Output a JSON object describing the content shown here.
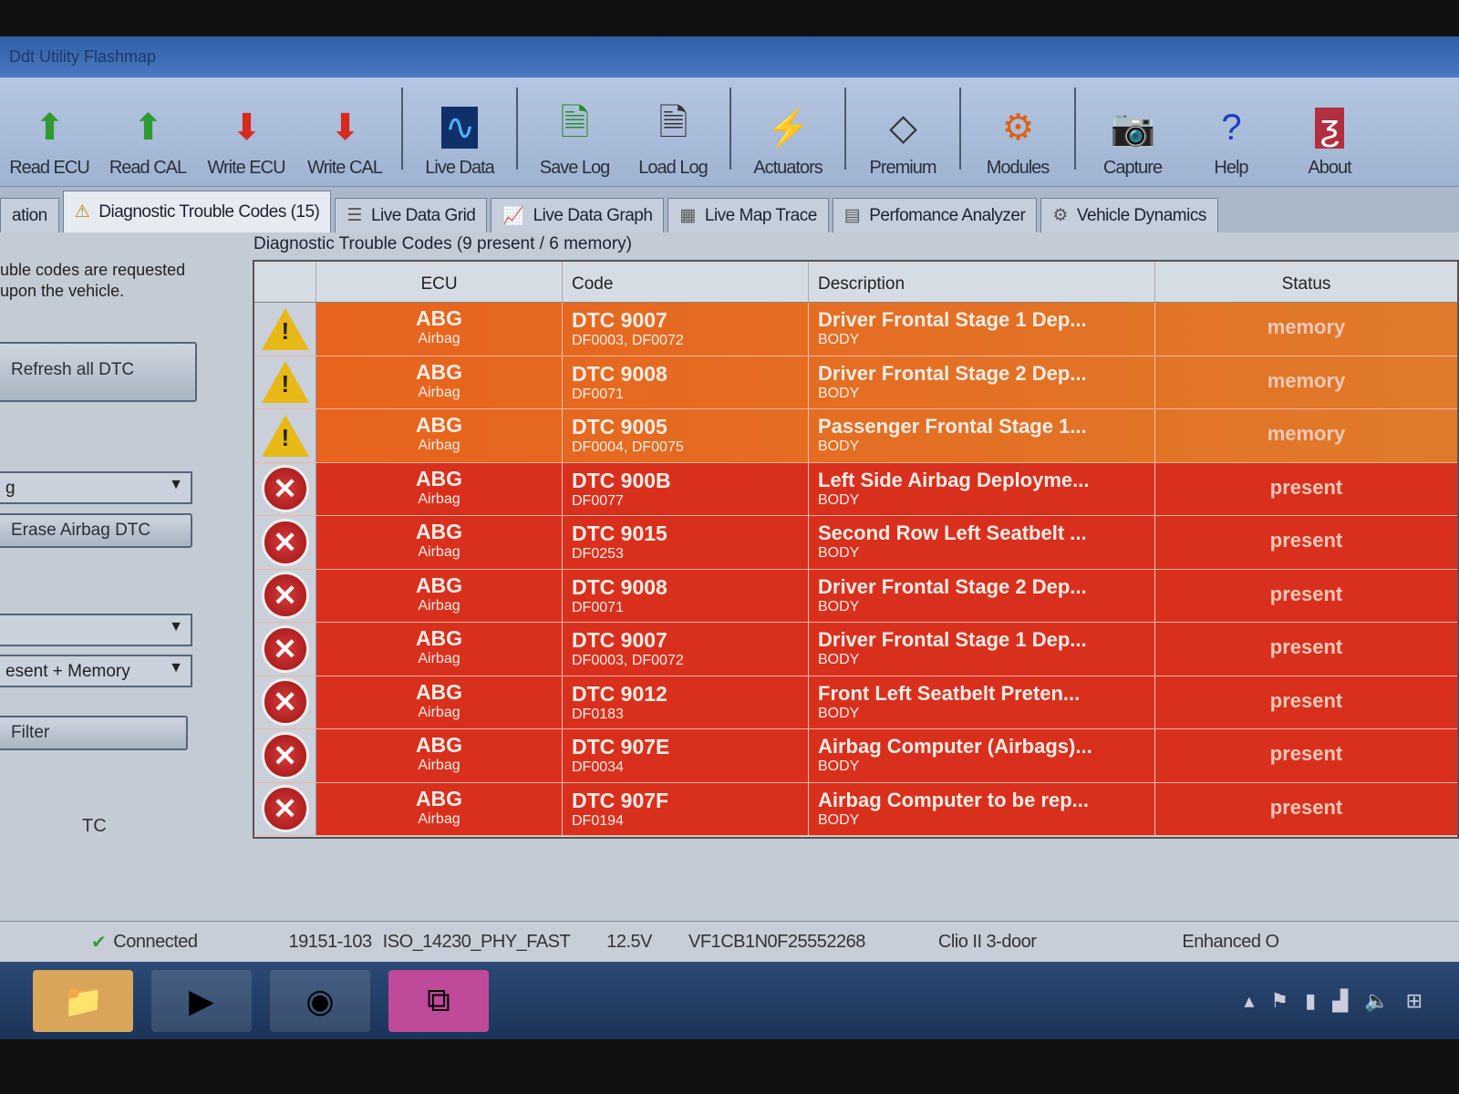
{
  "window": {
    "title": "Ddt Utility Flashmap"
  },
  "toolbar": [
    {
      "label": "Read ECU",
      "icon": "chip-green-arrow-icon"
    },
    {
      "label": "Read CAL",
      "icon": "chip-green-arrow-icon"
    },
    {
      "label": "Write ECU",
      "icon": "chip-red-arrow-icon"
    },
    {
      "label": "Write CAL",
      "icon": "chip-red-arrow-icon"
    },
    {
      "label": "Live Data",
      "icon": "waveform-icon"
    },
    {
      "label": "Save Log",
      "icon": "save-log-icon"
    },
    {
      "label": "Load Log",
      "icon": "load-log-icon"
    },
    {
      "label": "Actuators",
      "icon": "lightning-icon"
    },
    {
      "label": "Premium",
      "icon": "renault-logo-icon"
    },
    {
      "label": "Modules",
      "icon": "gear-icon"
    },
    {
      "label": "Capture",
      "icon": "camera-icon"
    },
    {
      "label": "Help",
      "icon": "help-icon"
    },
    {
      "label": "About",
      "icon": "app-logo-icon"
    }
  ],
  "tabs": [
    {
      "label": "ation"
    },
    {
      "label": "Diagnostic Trouble Codes (15)",
      "active": true
    },
    {
      "label": "Live Data Grid"
    },
    {
      "label": "Live Data Graph"
    },
    {
      "label": "Live Map Trace"
    },
    {
      "label": "Perfomance Analyzer"
    },
    {
      "label": "Vehicle Dynamics"
    }
  ],
  "left": {
    "note": "uble codes are requested upon the vehicle.",
    "refresh": "Refresh all DTC",
    "ecu_select": "g",
    "erase": "Erase Airbag DTC",
    "select2": "",
    "filter_select": "esent + Memory",
    "filter": "Filter",
    "bottom_label": "TC"
  },
  "dtc": {
    "title": "Diagnostic Trouble Codes (9 present / 6 memory)",
    "columns": [
      "ECU",
      "Code",
      "Description",
      "Status"
    ],
    "rows": [
      {
        "ecu": "ABG",
        "ecu_sub": "Airbag",
        "code": "DTC 9007",
        "sub": "DF0003, DF0072",
        "desc": "Driver Frontal Stage 1 Dep...",
        "cat": "BODY",
        "status": "memory"
      },
      {
        "ecu": "ABG",
        "ecu_sub": "Airbag",
        "code": "DTC 9008",
        "sub": "DF0071",
        "desc": "Driver Frontal Stage 2 Dep...",
        "cat": "BODY",
        "status": "memory"
      },
      {
        "ecu": "ABG",
        "ecu_sub": "Airbag",
        "code": "DTC 9005",
        "sub": "DF0004, DF0075",
        "desc": "Passenger Frontal Stage 1...",
        "cat": "BODY",
        "status": "memory"
      },
      {
        "ecu": "ABG",
        "ecu_sub": "Airbag",
        "code": "DTC 900B",
        "sub": "DF0077",
        "desc": "Left Side Airbag Deployme...",
        "cat": "BODY",
        "status": "present"
      },
      {
        "ecu": "ABG",
        "ecu_sub": "Airbag",
        "code": "DTC 9015",
        "sub": "DF0253",
        "desc": "Second Row Left Seatbelt ...",
        "cat": "BODY",
        "status": "present"
      },
      {
        "ecu": "ABG",
        "ecu_sub": "Airbag",
        "code": "DTC 9008",
        "sub": "DF0071",
        "desc": "Driver Frontal Stage 2 Dep...",
        "cat": "BODY",
        "status": "present"
      },
      {
        "ecu": "ABG",
        "ecu_sub": "Airbag",
        "code": "DTC 9007",
        "sub": "DF0003, DF0072",
        "desc": "Driver Frontal Stage 1 Dep...",
        "cat": "BODY",
        "status": "present"
      },
      {
        "ecu": "ABG",
        "ecu_sub": "Airbag",
        "code": "DTC 9012",
        "sub": "DF0183",
        "desc": "Front Left Seatbelt Preten...",
        "cat": "BODY",
        "status": "present"
      },
      {
        "ecu": "ABG",
        "ecu_sub": "Airbag",
        "code": "DTC 907E",
        "sub": "DF0034",
        "desc": "Airbag Computer (Airbags)...",
        "cat": "BODY",
        "status": "present"
      },
      {
        "ecu": "ABG",
        "ecu_sub": "Airbag",
        "code": "DTC 907F",
        "sub": "DF0194",
        "desc": "Airbag Computer to be rep...",
        "cat": "BODY",
        "status": "present"
      }
    ]
  },
  "status": {
    "connection": "Connected",
    "ecu_ref": "19151-103",
    "protocol": "ISO_14230_PHY_FAST",
    "voltage": "12.5V",
    "vin": "VF1CB1N0F25552268",
    "vehicle": "Clio II 3-door",
    "mode": "Enhanced O"
  },
  "colors": {
    "memory": "#e8621c",
    "present": "#d9301e"
  }
}
